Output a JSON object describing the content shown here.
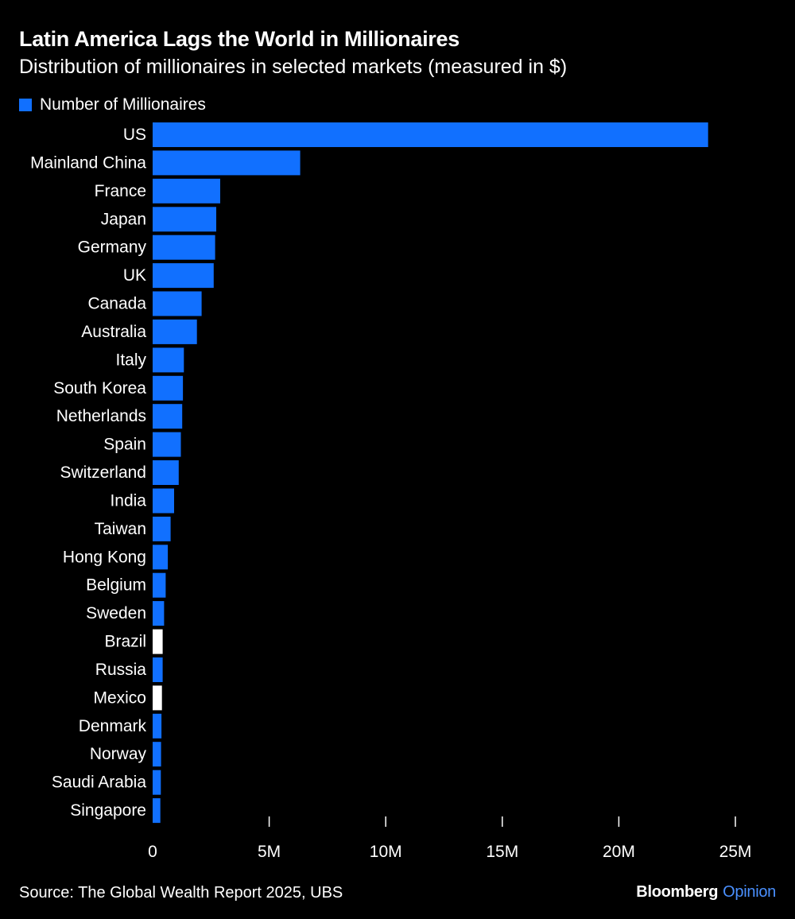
{
  "header": {
    "title": "Latin America Lags the World in Millionaires",
    "subtitle": "Distribution of millionaires in selected markets (measured in $)"
  },
  "colors": {
    "background": "#000000",
    "bar": "#1170FF",
    "highlight": "#FFFFFF",
    "text": "#FFFFFF",
    "brand_accent": "#4A90FF"
  },
  "chart_data": {
    "type": "bar",
    "orientation": "horizontal",
    "title": "Latin America Lags the World in Millionaires",
    "subtitle": "Distribution of millionaires in selected markets (measured in $)",
    "legend": [
      {
        "label": "Number of Millionaires",
        "color": "#1170FF"
      }
    ],
    "legend_position": "top-left",
    "categories": [
      "US",
      "Mainland China",
      "France",
      "Japan",
      "Germany",
      "UK",
      "Canada",
      "Australia",
      "Italy",
      "South Korea",
      "Netherlands",
      "Spain",
      "Switzerland",
      "India",
      "Taiwan",
      "Hong Kong",
      "Belgium",
      "Sweden",
      "Brazil",
      "Russia",
      "Mexico",
      "Denmark",
      "Norway",
      "Saudi Arabia",
      "Singapore"
    ],
    "values": [
      23830000,
      6330000,
      2900000,
      2730000,
      2680000,
      2620000,
      2100000,
      1900000,
      1340000,
      1300000,
      1270000,
      1210000,
      1120000,
      920000,
      770000,
      650000,
      560000,
      490000,
      430000,
      430000,
      400000,
      380000,
      360000,
      350000,
      330000
    ],
    "highlighted": [
      "Brazil",
      "Mexico"
    ],
    "xlim": [
      0,
      25000000
    ],
    "xticks": [
      {
        "value": 0,
        "label": "0"
      },
      {
        "value": 5000000,
        "label": "5M"
      },
      {
        "value": 10000000,
        "label": "10M"
      },
      {
        "value": 15000000,
        "label": "15M"
      },
      {
        "value": 20000000,
        "label": "20M"
      },
      {
        "value": 25000000,
        "label": "25M"
      }
    ],
    "xlabel": "",
    "ylabel": "",
    "grid": false
  },
  "footer": {
    "source": "Source: The Global Wealth Report 2025, UBS",
    "brand_name": "Bloomberg",
    "brand_section": "Opinion"
  }
}
